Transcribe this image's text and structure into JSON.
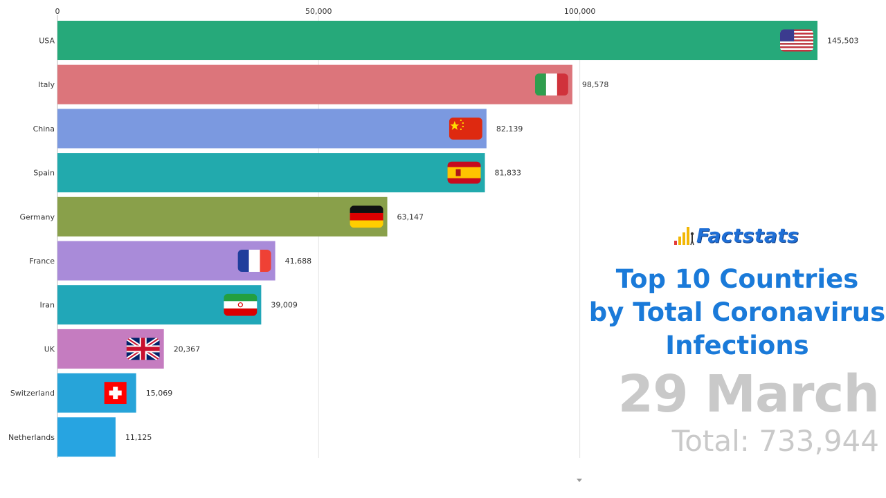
{
  "chart_data": {
    "type": "bar",
    "orientation": "horizontal",
    "categories": [
      "USA",
      "Italy",
      "China",
      "Spain",
      "Germany",
      "France",
      "Iran",
      "UK",
      "Switzerland",
      "Netherlands"
    ],
    "values": [
      145503,
      98578,
      82139,
      81833,
      63147,
      41688,
      39009,
      20367,
      15069,
      11125
    ],
    "value_labels": [
      "145,503",
      "98,578",
      "82,139",
      "81,833",
      "63,147",
      "41,688",
      "39,009",
      "20,367",
      "15,069",
      "11,125"
    ],
    "colors": [
      "#26a97a",
      "#dc757b",
      "#7b99e0",
      "#22aaad",
      "#89a04a",
      "#a98bd9",
      "#21a7b8",
      "#c57cc0",
      "#27a4d9",
      "#27a4e1"
    ],
    "flags": [
      "usa-flag",
      "italy-flag",
      "china-flag",
      "spain-flag",
      "germany-flag",
      "france-flag",
      "iran-flag",
      "uk-flag",
      "switzerland-flag",
      "netherlands-flag"
    ],
    "x_ticks": [
      0,
      50000,
      100000
    ],
    "x_tick_labels": [
      "0",
      "50,000",
      "100,000"
    ],
    "xlim": [
      0,
      145503
    ],
    "grid": true
  },
  "brand": {
    "name": "Factstats",
    "icon": "bar-chart-figure-icon",
    "color": "#1f6fd6"
  },
  "title": {
    "line1": "Top 10 Countries",
    "line2": "by Total Coronavirus",
    "line3": "Infections"
  },
  "date": "29 March",
  "total": "Total: 733,944"
}
